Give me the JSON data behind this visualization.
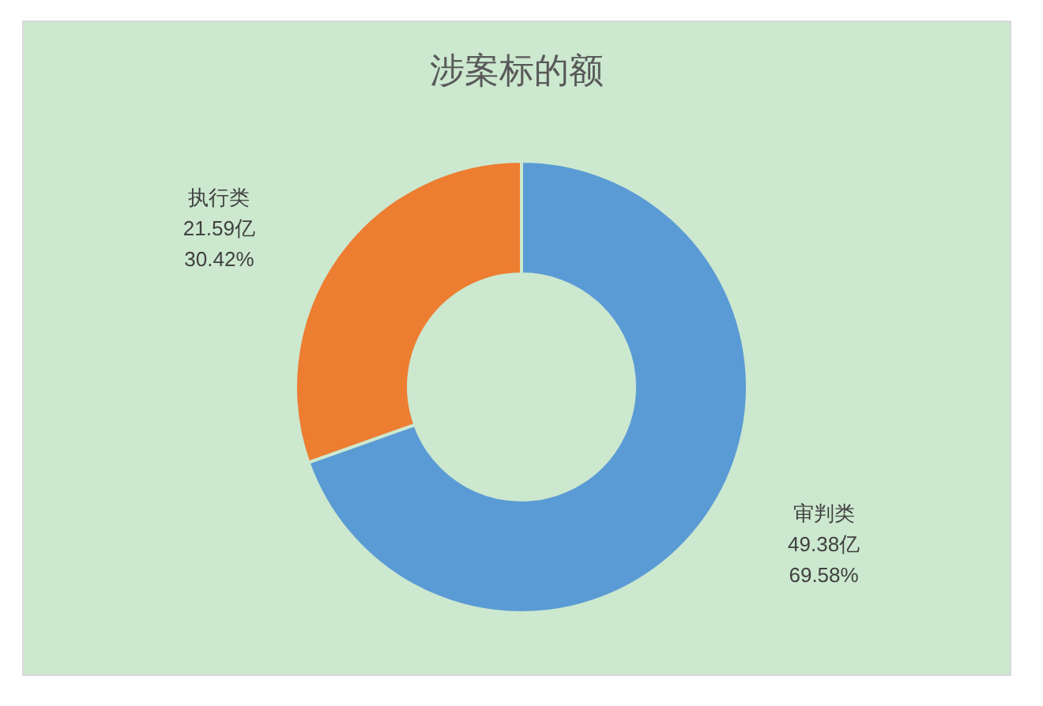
{
  "chart_data": {
    "type": "donut",
    "title": "涉案标的额",
    "categories": [
      "审判类",
      "执行类"
    ],
    "values": [
      49.38,
      21.59
    ],
    "colors": [
      "#5b9bd5",
      "#ed7d31"
    ],
    "value_labels": [
      "49.38亿\n69.58%",
      "21.59亿\n30.42%"
    ]
  }
}
